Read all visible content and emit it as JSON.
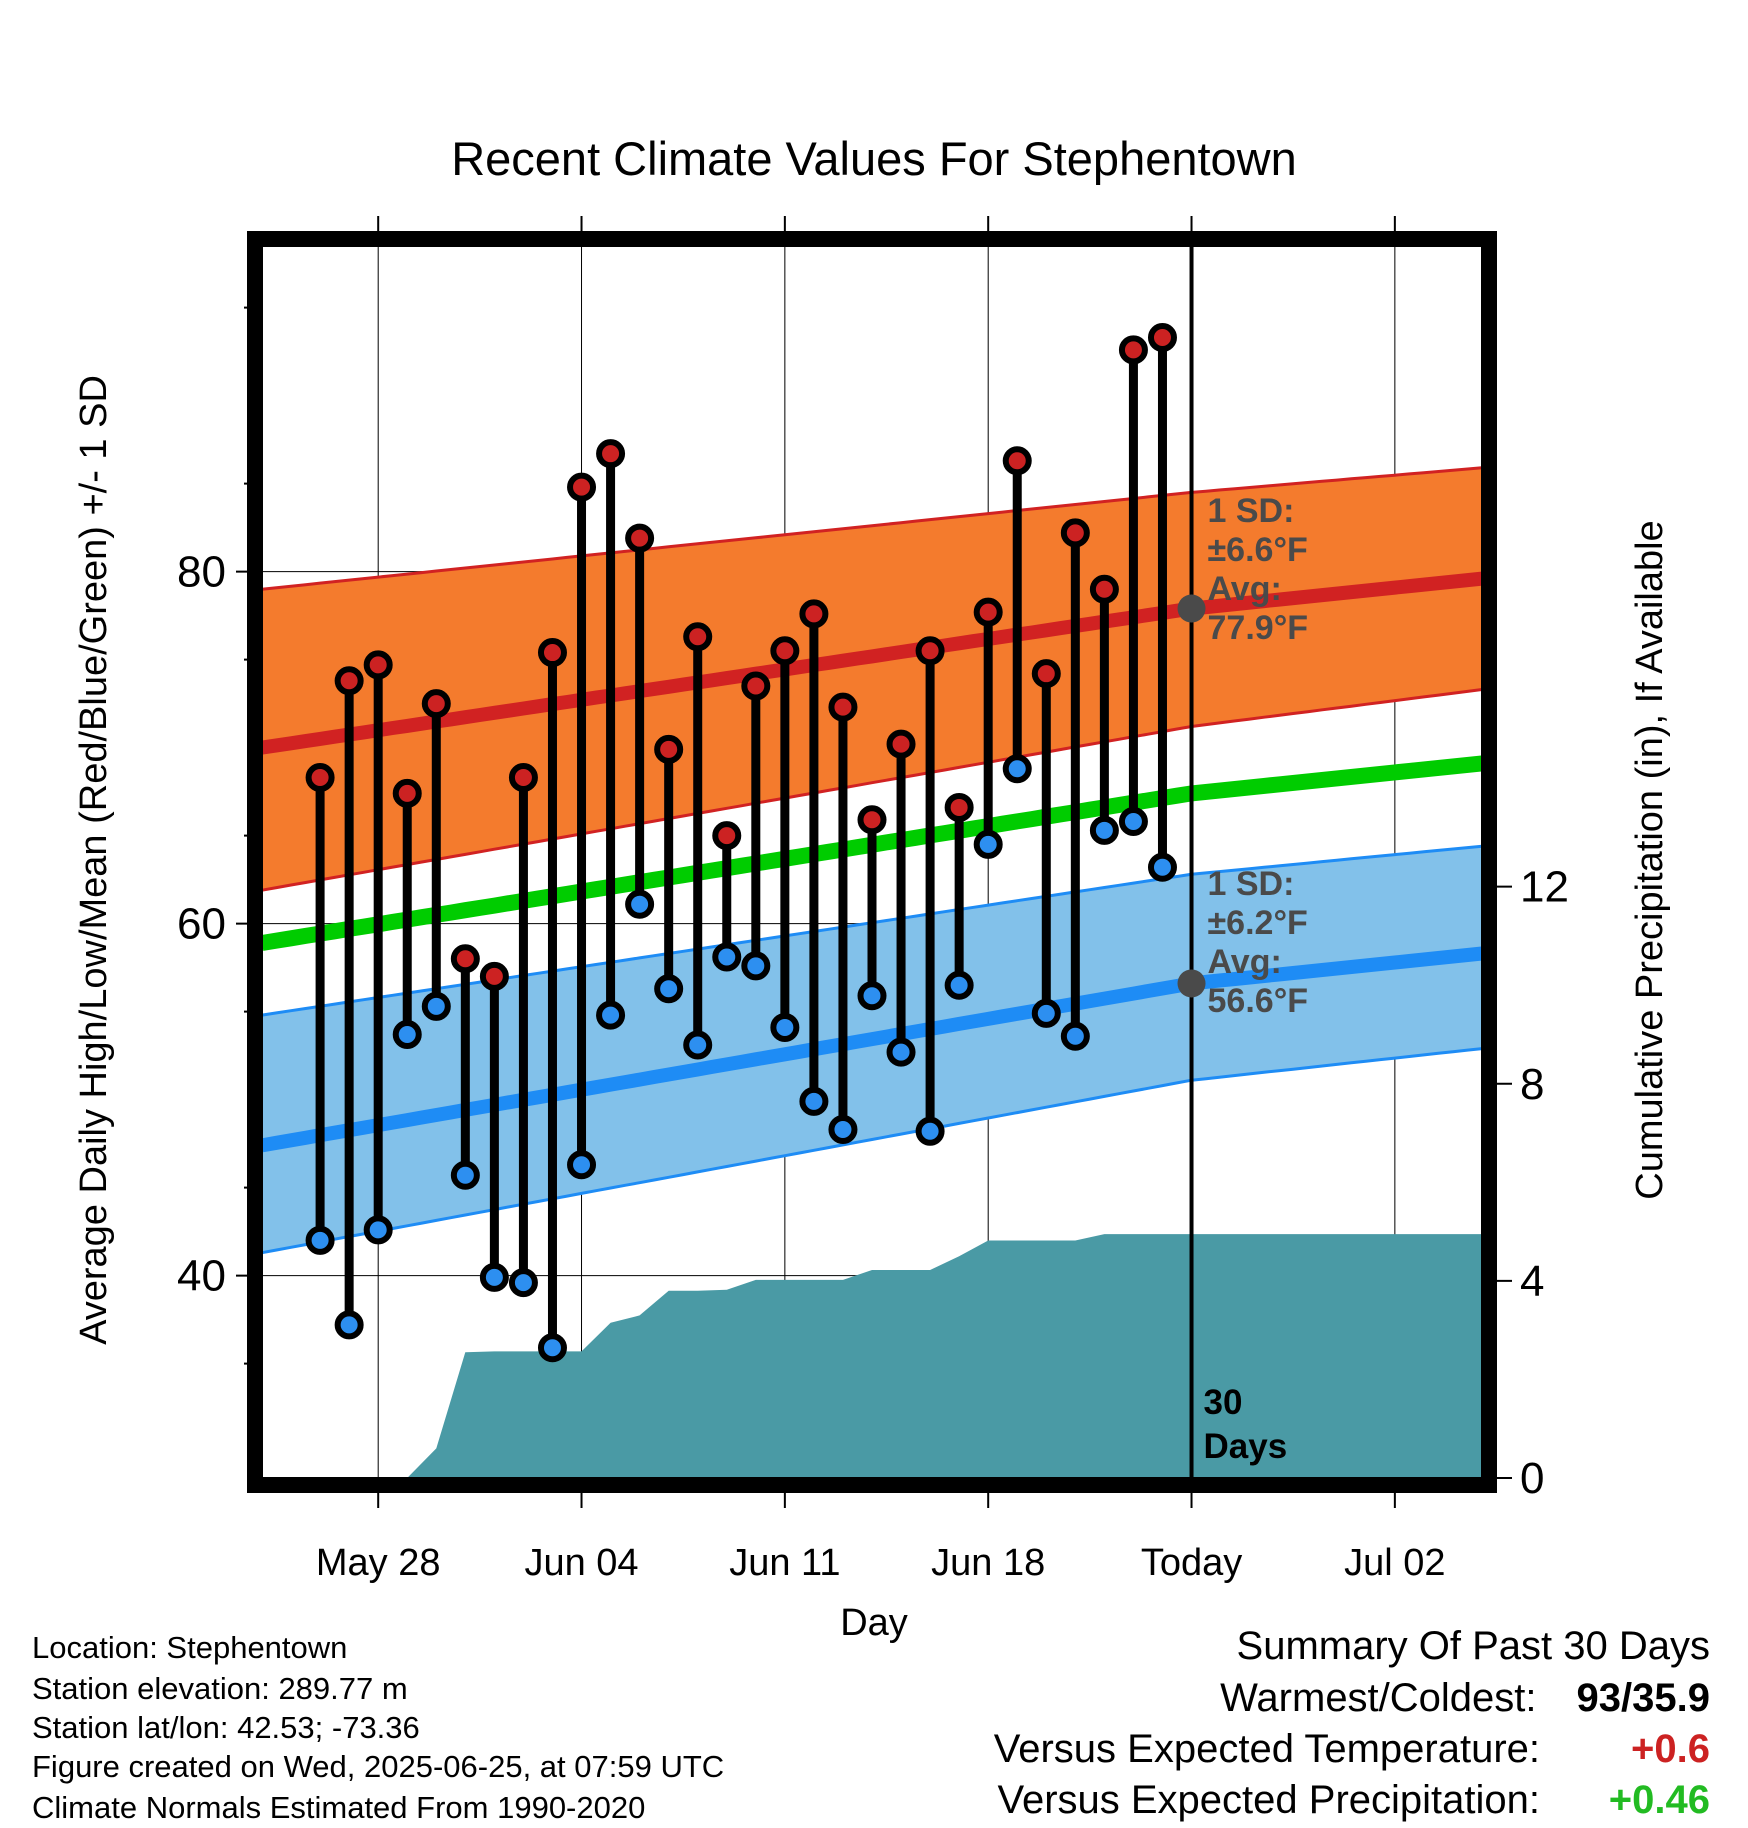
{
  "chart_data": {
    "type": "line",
    "title": "Recent Climate Values For Stephentown",
    "xlabel": "Day",
    "ylabel_left": "Average Daily High/Low/Mean (Red/Blue/Green) +/- 1 SD",
    "ylabel_right": "Cumulative Precipitation (in), If Available",
    "x_range": [
      "2025-05-24",
      "2025-07-05"
    ],
    "ylim_left": [
      28.5,
      98.5
    ],
    "yticks_left": [
      40,
      60,
      80
    ],
    "ylim_right": [
      0,
      25
    ],
    "yticks_right": [
      0,
      4,
      8,
      12
    ],
    "x_ticks": [
      {
        "date": "2025-05-28",
        "label": "May 28"
      },
      {
        "date": "2025-06-04",
        "label": "Jun 04"
      },
      {
        "date": "2025-06-11",
        "label": "Jun 11"
      },
      {
        "date": "2025-06-18",
        "label": "Jun 18"
      },
      {
        "date": "2025-06-25",
        "label": "Today"
      },
      {
        "date": "2025-07-02",
        "label": "Jul 02"
      }
    ],
    "today": "2025-06-25",
    "today_label_line1": "30",
    "today_label_line2": "Days",
    "normal_high": {
      "dates": [
        "2025-05-24",
        "2025-06-25",
        "2025-07-05"
      ],
      "mean": [
        70.0,
        77.9,
        79.6
      ],
      "upper": [
        79.0,
        84.5,
        85.9
      ],
      "lower": [
        61.9,
        71.2,
        73.3
      ],
      "sd_label": "1 SD:",
      "sd_value": "±6.6°F",
      "avg_label": "Avg:",
      "avg_value": "77.9°F"
    },
    "normal_low": {
      "dates": [
        "2025-05-24",
        "2025-06-25",
        "2025-07-05"
      ],
      "mean": [
        47.4,
        56.6,
        58.3
      ],
      "upper": [
        54.8,
        62.8,
        64.4
      ],
      "lower": [
        41.3,
        51.1,
        52.9
      ],
      "sd_label": "1 SD:",
      "sd_value": "±6.2°F",
      "avg_label": "Avg:",
      "avg_value": "56.6°F"
    },
    "normal_mean": {
      "dates": [
        "2025-05-24",
        "2025-06-25",
        "2025-07-05"
      ],
      "values": [
        58.9,
        67.4,
        69.1
      ]
    },
    "daily": {
      "dates": [
        "2025-05-26",
        "2025-05-27",
        "2025-05-28",
        "2025-05-29",
        "2025-05-30",
        "2025-05-31",
        "2025-06-01",
        "2025-06-02",
        "2025-06-03",
        "2025-06-04",
        "2025-06-05",
        "2025-06-06",
        "2025-06-07",
        "2025-06-08",
        "2025-06-09",
        "2025-06-10",
        "2025-06-11",
        "2025-06-12",
        "2025-06-13",
        "2025-06-14",
        "2025-06-15",
        "2025-06-16",
        "2025-06-17",
        "2025-06-18",
        "2025-06-19",
        "2025-06-20",
        "2025-06-21",
        "2025-06-22",
        "2025-06-23",
        "2025-06-24"
      ],
      "high": [
        68.3,
        73.8,
        74.7,
        67.4,
        72.5,
        58.0,
        57.0,
        68.3,
        75.4,
        84.8,
        86.7,
        81.9,
        69.9,
        76.3,
        65.0,
        73.5,
        75.5,
        77.6,
        72.3,
        65.9,
        70.2,
        75.5,
        66.6,
        77.7,
        86.3,
        74.2,
        82.2,
        79.0,
        92.6,
        93.3
      ],
      "low": [
        42.0,
        37.2,
        42.6,
        53.7,
        55.3,
        45.7,
        39.9,
        39.6,
        35.9,
        46.3,
        54.8,
        61.1,
        56.3,
        53.1,
        58.1,
        57.6,
        54.1,
        49.9,
        48.3,
        55.9,
        52.7,
        48.2,
        56.5,
        64.5,
        68.8,
        54.9,
        53.6,
        65.3,
        65.8,
        63.2
      ]
    },
    "precip": {
      "dates": [
        "2025-05-25",
        "2025-05-26",
        "2025-05-27",
        "2025-05-28",
        "2025-05-29",
        "2025-05-30",
        "2025-05-31",
        "2025-06-01",
        "2025-06-02",
        "2025-06-03",
        "2025-06-04",
        "2025-06-05",
        "2025-06-06",
        "2025-06-07",
        "2025-06-08",
        "2025-06-09",
        "2025-06-10",
        "2025-06-11",
        "2025-06-12",
        "2025-06-13",
        "2025-06-14",
        "2025-06-15",
        "2025-06-16",
        "2025-06-17",
        "2025-06-18",
        "2025-06-19",
        "2025-06-20",
        "2025-06-21",
        "2025-06-22",
        "2025-06-23",
        "2025-06-24",
        "2025-06-25",
        "2025-07-05"
      ],
      "cumulative": [
        0,
        0,
        0,
        0,
        0,
        0.6,
        2.55,
        2.57,
        2.57,
        2.57,
        2.57,
        3.15,
        3.3,
        3.8,
        3.8,
        3.82,
        4.02,
        4.02,
        4.02,
        4.02,
        4.22,
        4.22,
        4.22,
        4.5,
        4.82,
        4.82,
        4.82,
        4.82,
        4.95,
        4.95,
        4.95,
        4.95,
        4.95
      ]
    },
    "grid": true,
    "legend": "none"
  },
  "colors": {
    "high_band": "#f47b2d",
    "high_line": "#d12222",
    "low_band": "#82c1ea",
    "low_line": "#1e8cf5",
    "mean_line": "#00cc00",
    "precip_fill": "#4a9aa5",
    "high_marker": "#cc2222",
    "low_marker": "#2d8ff0",
    "avg_marker": "#4a4a4a",
    "annotation_text": "#4a4a4a",
    "positive_temp": "#cc2222",
    "positive_precip": "#22bb22"
  },
  "station_info": {
    "location": "Location: Stephentown",
    "elevation": "Station elevation: 289.77 m",
    "latlon": "Station lat/lon: 42.53; -73.36",
    "created": "Figure created on Wed, 2025-06-25, at 07:59 UTC",
    "normals": "Climate Normals Estimated From 1990-2020"
  },
  "summary": {
    "heading": "Summary Of Past 30 Days",
    "warmest_label": "Warmest/Coldest:",
    "warmest_value": "93/35.9",
    "temp_label": "Versus Expected Temperature:",
    "temp_value": "+0.6",
    "precip_label": "Versus Expected Precipitation:",
    "precip_value": "+0.46"
  }
}
